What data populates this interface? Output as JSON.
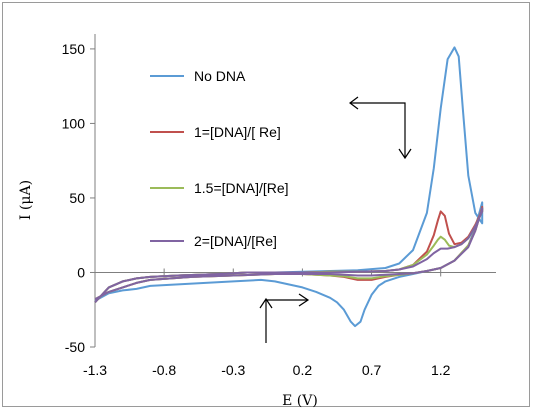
{
  "chart_data": {
    "type": "line",
    "title": "",
    "xlabel": "E (V)",
    "ylabel": "I (μA)",
    "xlim": [
      -1.3,
      1.6
    ],
    "ylim": [
      -50,
      160
    ],
    "x_ticks": [
      -1.3,
      -0.8,
      -0.3,
      0.2,
      0.7,
      1.2
    ],
    "x_tick_labels": [
      "-1.3",
      "-0.8",
      "-0.3",
      "0.2",
      "0.7",
      "1.2"
    ],
    "y_ticks": [
      -50,
      0,
      50,
      100,
      150
    ],
    "y_tick_labels": [
      "-50",
      "0",
      "50",
      "100",
      "150"
    ],
    "grid": false,
    "legend_position": "inside-left",
    "series": [
      {
        "name": "No DNA",
        "color": "#5b9bd5",
        "x": [
          -1.3,
          -1.2,
          -1.1,
          -1.0,
          -0.9,
          -0.7,
          -0.4,
          -0.2,
          0.0,
          0.2,
          0.4,
          0.6,
          0.8,
          0.9,
          1.0,
          1.1,
          1.15,
          1.2,
          1.25,
          1.3,
          1.33,
          1.36,
          1.4,
          1.45,
          1.5,
          1.5,
          1.45,
          1.4,
          1.3,
          1.2,
          1.1,
          1.0,
          0.9,
          0.8,
          0.75,
          0.7,
          0.65,
          0.62,
          0.58,
          0.55,
          0.5,
          0.45,
          0.4,
          0.3,
          0.2,
          0.1,
          0.0,
          -0.1,
          -0.3,
          -0.5,
          -0.7,
          -0.9,
          -1.0,
          -1.1,
          -1.2,
          -1.3
        ],
        "y": [
          -20,
          -10,
          -6,
          -4,
          -3,
          -2,
          -1,
          0,
          0,
          0.5,
          1,
          1.5,
          3,
          6,
          15,
          40,
          70,
          110,
          143,
          151,
          145,
          110,
          65,
          40,
          33,
          47,
          30,
          18,
          8,
          3,
          1,
          -1,
          -3,
          -6,
          -9,
          -15,
          -25,
          -33,
          -36,
          -33,
          -25,
          -20,
          -17,
          -13,
          -10,
          -8,
          -6,
          -5,
          -6,
          -7,
          -8,
          -9,
          -11,
          -12,
          -14,
          -19
        ]
      },
      {
        "name": "1=[DNA]/[ Re]",
        "color": "#c0504d",
        "x": [
          -1.3,
          -1.2,
          -1.1,
          -1.0,
          -0.9,
          -0.7,
          -0.4,
          -0.2,
          0.0,
          0.2,
          0.4,
          0.6,
          0.8,
          0.9,
          1.0,
          1.1,
          1.15,
          1.18,
          1.2,
          1.23,
          1.26,
          1.3,
          1.35,
          1.4,
          1.45,
          1.5,
          1.5,
          1.45,
          1.4,
          1.3,
          1.2,
          1.1,
          1.0,
          0.9,
          0.8,
          0.7,
          0.6,
          0.5,
          0.4,
          0.3,
          0.2,
          0.1,
          0.0,
          -0.3,
          -0.6,
          -0.9,
          -1.0,
          -1.1,
          -1.2,
          -1.3
        ],
        "y": [
          -20,
          -10,
          -6,
          -4,
          -3,
          -2,
          -1,
          0,
          0,
          0,
          0.5,
          0.5,
          1,
          2,
          5,
          14,
          25,
          35,
          41,
          38,
          26,
          19,
          20,
          24,
          32,
          42,
          44,
          28,
          18,
          8,
          3,
          1,
          -0.5,
          -1.5,
          -3,
          -5,
          -5,
          -3,
          -2,
          -1.5,
          -1,
          -1,
          -1,
          -2,
          -3,
          -5,
          -7,
          -10,
          -13,
          -18
        ]
      },
      {
        "name": "1.5=[DNA]/[Re]",
        "color": "#9bbb59",
        "x": [
          -1.3,
          -1.2,
          -1.1,
          -1.0,
          -0.9,
          -0.7,
          -0.4,
          -0.2,
          0.0,
          0.2,
          0.4,
          0.6,
          0.8,
          0.9,
          1.0,
          1.1,
          1.15,
          1.18,
          1.2,
          1.23,
          1.26,
          1.3,
          1.35,
          1.4,
          1.45,
          1.5,
          1.5,
          1.45,
          1.4,
          1.3,
          1.2,
          1.1,
          1.0,
          0.9,
          0.8,
          0.7,
          0.6,
          0.5,
          0.4,
          0.3,
          0.2,
          0.1,
          0.0,
          -0.3,
          -0.6,
          -0.9,
          -1.0,
          -1.1,
          -1.2,
          -1.3
        ],
        "y": [
          -20,
          -10,
          -6,
          -4,
          -3,
          -2,
          -1,
          0,
          0,
          0,
          0.5,
          0.5,
          1,
          2,
          5,
          12,
          18,
          22,
          24,
          22,
          18,
          17,
          19,
          23,
          31,
          41,
          43,
          28,
          18,
          8,
          3,
          1,
          -0.5,
          -1.5,
          -2.5,
          -4,
          -4,
          -2.5,
          -2,
          -1.5,
          -1,
          -1,
          -1,
          -2,
          -3,
          -5,
          -7,
          -10,
          -13,
          -18
        ]
      },
      {
        "name": "2=[DNA]/[Re]",
        "color": "#8064a2",
        "x": [
          -1.3,
          -1.2,
          -1.1,
          -1.0,
          -0.9,
          -0.7,
          -0.4,
          -0.2,
          0.0,
          0.2,
          0.4,
          0.6,
          0.8,
          0.9,
          1.0,
          1.1,
          1.15,
          1.2,
          1.25,
          1.3,
          1.35,
          1.4,
          1.45,
          1.5,
          1.5,
          1.45,
          1.4,
          1.3,
          1.2,
          1.1,
          1.0,
          0.9,
          0.8,
          0.7,
          0.6,
          0.5,
          0.4,
          0.3,
          0.2,
          0.1,
          0.0,
          -0.3,
          -0.6,
          -0.9,
          -1.0,
          -1.1,
          -1.2,
          -1.3
        ],
        "y": [
          -20,
          -10,
          -6,
          -4,
          -3,
          -2,
          -1,
          0,
          0,
          0,
          0,
          0.5,
          1,
          2,
          4,
          9,
          13,
          16,
          16,
          17,
          19,
          23,
          31,
          41,
          43,
          28,
          17,
          8,
          3,
          1,
          -0.5,
          -1,
          -1.5,
          -2,
          -2,
          -1.5,
          -1,
          -1,
          -1,
          -1,
          -1,
          -2,
          -3,
          -5,
          -7,
          -10,
          -13,
          -18
        ]
      }
    ]
  }
}
